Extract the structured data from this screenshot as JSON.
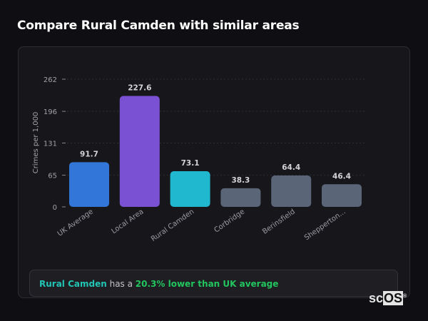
{
  "title": "Compare Rural Camden with similar areas",
  "chart_data": {
    "type": "bar",
    "title": "",
    "xlabel": "",
    "ylabel": "Crimes per 1,000",
    "ylim": [
      0,
      262
    ],
    "yticks": [
      0,
      65,
      131,
      196,
      262
    ],
    "grid": true,
    "categories": [
      "UK Average",
      "Local Area",
      "Rural Camden",
      "Corbridge",
      "Berinsfield",
      "Shepperton..."
    ],
    "values": [
      91.7,
      227.6,
      73.1,
      38.3,
      64.4,
      46.4
    ],
    "data_labels": [
      "91.7",
      "227.6",
      "73.1",
      "38.3",
      "64.4",
      "46.4"
    ],
    "colors": [
      "#3276d9",
      "#7b51d3",
      "#1fb8cf",
      "#5a6577",
      "#5a6577",
      "#5a6577"
    ]
  },
  "summary": {
    "area": "Rural Camden",
    "connector": " has a ",
    "comparison": "20.3% lower than UK average"
  },
  "logo": {
    "text_sc": "sc",
    "text_os": "OS",
    "mark": "®"
  }
}
